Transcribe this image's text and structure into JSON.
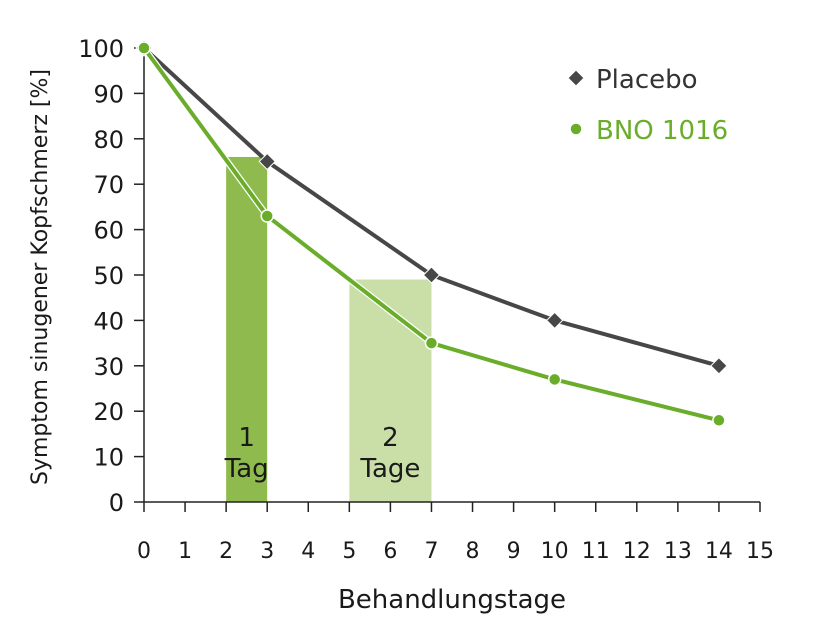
{
  "chart_data": {
    "type": "line",
    "title": "",
    "xlabel": "Behandlungstage",
    "ylabel": "Symptom sinugener Kopfschmerz [%]",
    "xlim": [
      0,
      15
    ],
    "ylim": [
      0,
      100
    ],
    "xticks": [
      0,
      1,
      2,
      3,
      4,
      5,
      6,
      7,
      8,
      9,
      10,
      11,
      12,
      13,
      14,
      15
    ],
    "yticks": [
      0,
      10,
      20,
      30,
      40,
      50,
      60,
      70,
      80,
      90,
      100
    ],
    "grid": false,
    "legend_position": "top-right",
    "series": [
      {
        "name": "Placebo",
        "marker": "diamond",
        "color": "#474747",
        "x": [
          0,
          3,
          7,
          10,
          14
        ],
        "y": [
          100,
          75,
          50,
          40,
          30
        ]
      },
      {
        "name": "BNO 1016",
        "marker": "circle",
        "color": "#6aad2a",
        "x": [
          0,
          3,
          7,
          10,
          14
        ],
        "y": [
          100,
          63,
          35,
          27,
          18
        ]
      }
    ],
    "annotations": [
      {
        "label_line1": "1",
        "label_line2": "Tag",
        "x_from": 2,
        "x_to": 3,
        "height": 76,
        "color": "#8fbb4e"
      },
      {
        "label_line1": "2",
        "label_line2": "Tage",
        "x_from": 5,
        "x_to": 7,
        "height": 49,
        "color": "#cadfa8"
      }
    ]
  }
}
